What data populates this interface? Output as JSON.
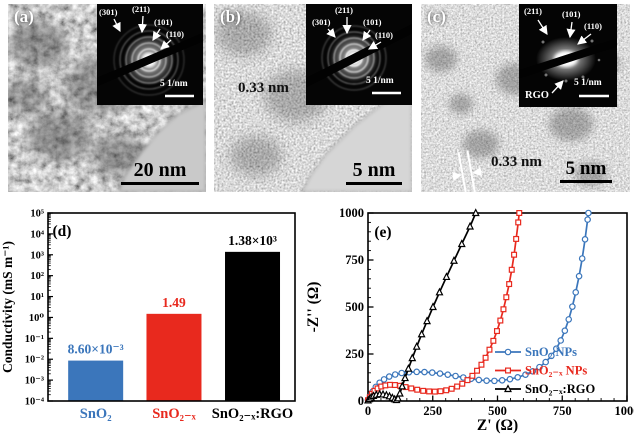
{
  "figure": {
    "background": "#ffffff",
    "panels": {
      "a": {
        "label": "(a)",
        "scale_bar_label": "20 nm",
        "inset": {
          "spots": [
            "(301)",
            "(211)",
            "(101)",
            "(110)"
          ],
          "scale_bar_label": "5 1/nm"
        }
      },
      "b": {
        "label": "(b)",
        "lattice_spacing_label": "0.33 nm",
        "scale_bar_label": "5 nm",
        "inset": {
          "spots": [
            "(211)",
            "(301)",
            "(101)",
            "(110)"
          ],
          "scale_bar_label": "5 1/nm"
        }
      },
      "c": {
        "label": "(c)",
        "lattice_spacing_label": "0.33 nm",
        "scale_bar_label": "5 nm",
        "inset": {
          "spots": [
            "(211)",
            "(101)",
            "(110)"
          ],
          "rgo_label": "RGO",
          "scale_bar_label": "5 1/nm"
        }
      }
    }
  },
  "chart_data": [
    {
      "type": "bar",
      "panel_label": "(d)",
      "ylabel": "Conductivity (mS m⁻¹)",
      "yscale": "log",
      "ylim": [
        0.0001,
        100000
      ],
      "ytick_labels": [
        "10⁵",
        "10⁴",
        "10³",
        "10²",
        "10¹",
        "10⁰",
        "10⁻¹",
        "10⁻²",
        "10⁻³",
        "10⁻⁴"
      ],
      "categories": [
        "SnO₂",
        "SnO₂₋ₓ",
        "SnO₂₋ₓ:RGO"
      ],
      "values": [
        0.0086,
        1.49,
        1380
      ],
      "value_labels": [
        "8.60×10⁻³",
        "1.49",
        "1.38×10³"
      ],
      "bar_colors": [
        "#3b76bb",
        "#e8291e",
        "#000000"
      ]
    },
    {
      "type": "scatter",
      "panel_label": "(e)",
      "xlabel": "Z' (Ω)",
      "ylabel": "-Z'' (Ω)",
      "xlim": [
        0,
        1000
      ],
      "ylim": [
        0,
        1000
      ],
      "xticks": [
        0,
        250,
        500,
        750,
        1000
      ],
      "yticks": [
        0,
        250,
        500,
        750,
        1000
      ],
      "grid": false,
      "legend_position": "inside-bottom-right",
      "series": [
        {
          "name": "SnO₂ NPs",
          "color": "#3b76bb",
          "marker": "circle",
          "points": [
            [
              0,
              5
            ],
            [
              8,
              25
            ],
            [
              18,
              50
            ],
            [
              30,
              75
            ],
            [
              45,
              97
            ],
            [
              62,
              115
            ],
            [
              82,
              130
            ],
            [
              105,
              141
            ],
            [
              130,
              149
            ],
            [
              158,
              153
            ],
            [
              188,
              155
            ],
            [
              218,
              154
            ],
            [
              248,
              151
            ],
            [
              278,
              146
            ],
            [
              308,
              140
            ],
            [
              338,
              133
            ],
            [
              368,
              125
            ],
            [
              398,
              118
            ],
            [
              428,
              112
            ],
            [
              458,
              108
            ],
            [
              488,
              107
            ],
            [
              518,
              110
            ],
            [
              548,
              116
            ],
            [
              578,
              126
            ],
            [
              608,
              140
            ],
            [
              636,
              158
            ],
            [
              662,
              180
            ],
            [
              686,
              207
            ],
            [
              708,
              240
            ],
            [
              727,
              278
            ],
            [
              744,
              322
            ],
            [
              760,
              374
            ],
            [
              775,
              434
            ],
            [
              789,
              502
            ],
            [
              802,
              578
            ],
            [
              815,
              664
            ],
            [
              827,
              758
            ],
            [
              838,
              860
            ],
            [
              848,
              965
            ],
            [
              851,
              1000
            ]
          ]
        },
        {
          "name": "SnO₂₋ₓ NPs",
          "color": "#e8291e",
          "marker": "square",
          "points": [
            [
              0,
              4
            ],
            [
              7,
              20
            ],
            [
              15,
              38
            ],
            [
              25,
              54
            ],
            [
              37,
              67
            ],
            [
              51,
              77
            ],
            [
              67,
              83
            ],
            [
              85,
              86
            ],
            [
              104,
              85
            ],
            [
              124,
              81
            ],
            [
              145,
              74
            ],
            [
              167,
              67
            ],
            [
              190,
              60
            ],
            [
              213,
              54
            ],
            [
              236,
              51
            ],
            [
              258,
              50
            ],
            [
              280,
              52
            ],
            [
              302,
              57
            ],
            [
              323,
              65
            ],
            [
              344,
              77
            ],
            [
              364,
              92
            ],
            [
              384,
              111
            ],
            [
              403,
              134
            ],
            [
              421,
              161
            ],
            [
              438,
              193
            ],
            [
              454,
              230
            ],
            [
              469,
              273
            ],
            [
              484,
              320
            ],
            [
              498,
              372
            ],
            [
              511,
              428
            ],
            [
              523,
              488
            ],
            [
              534,
              552
            ],
            [
              545,
              622
            ],
            [
              555,
              698
            ],
            [
              564,
              778
            ],
            [
              572,
              862
            ],
            [
              580,
              950
            ],
            [
              584,
              1000
            ]
          ]
        },
        {
          "name": "SnO₂₋ₓ:RGO",
          "color": "#000000",
          "marker": "triangle",
          "points": [
            [
              0,
              3
            ],
            [
              5,
              10
            ],
            [
              12,
              19
            ],
            [
              21,
              27
            ],
            [
              32,
              33
            ],
            [
              45,
              36
            ],
            [
              58,
              35
            ],
            [
              71,
              31
            ],
            [
              83,
              25
            ],
            [
              94,
              17
            ],
            [
              103,
              9
            ],
            [
              110,
              5
            ],
            [
              116,
              14
            ],
            [
              123,
              40
            ],
            [
              132,
              78
            ],
            [
              143,
              122
            ],
            [
              156,
              172
            ],
            [
              171,
              228
            ],
            [
              188,
              289
            ],
            [
              207,
              355
            ],
            [
              228,
              425
            ],
            [
              251,
              500
            ],
            [
              276,
              578
            ],
            [
              303,
              660
            ],
            [
              332,
              746
            ],
            [
              362,
              835
            ],
            [
              394,
              928
            ],
            [
              416,
              1000
            ]
          ]
        }
      ]
    }
  ]
}
